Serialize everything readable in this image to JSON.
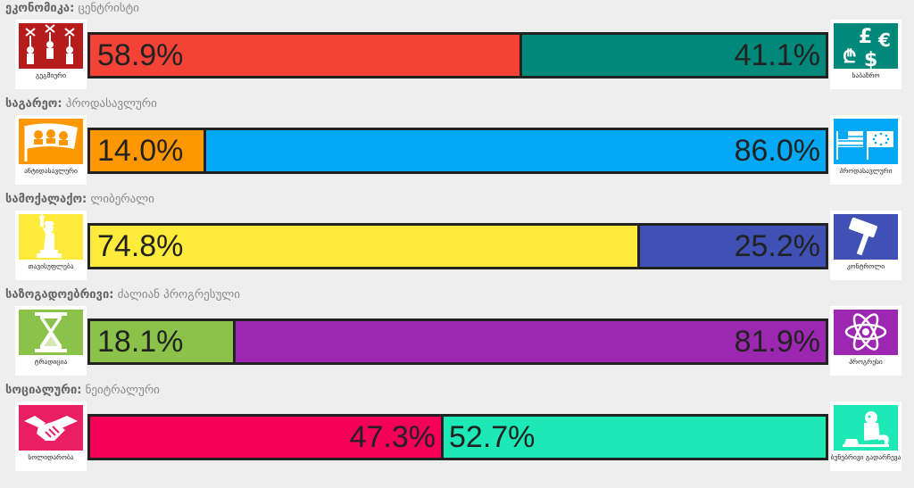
{
  "axes": [
    {
      "category": "ეკონომიკა:",
      "result": "ცენტრისტი",
      "left": {
        "label": "გეგმიური",
        "percent_text": "58.9%",
        "fraction": 0.589,
        "color": "#f44336",
        "tile_color": "#b71c1c",
        "icon": "puppets-icon"
      },
      "right": {
        "label": "საბაზრო",
        "percent_text": "41.1%",
        "color": "#00897b",
        "tile_color": "#00897b",
        "icon": "currency-icon"
      },
      "left_text_align": "left",
      "right_text_align": "right"
    },
    {
      "category": "საგარეო:",
      "result": "პროდასავლური",
      "left": {
        "label": "ანტიდასავლური",
        "percent_text": "14.0%",
        "fraction": 0.14,
        "color": "#ff9800",
        "tile_color": "#ff9800",
        "icon": "protest-flag-icon"
      },
      "right": {
        "label": "პროდასავლური",
        "percent_text": "86.0%",
        "color": "#03a9f4",
        "tile_color": "#03a9f4",
        "icon": "us-eu-flags-icon"
      },
      "left_text_align": "left",
      "right_text_align": "right"
    },
    {
      "category": "სამოქალაქო:",
      "result": "ლიბერალი",
      "left": {
        "label": "თავისუფლება",
        "percent_text": "74.8%",
        "fraction": 0.748,
        "color": "#ffeb3b",
        "tile_color": "#ffeb3b",
        "icon": "statue-of-liberty-icon"
      },
      "right": {
        "label": "კონტროლი",
        "percent_text": "25.2%",
        "color": "#3f51b5",
        "tile_color": "#3f51b5",
        "icon": "gavel-icon"
      },
      "left_text_align": "left",
      "right_text_align": "right"
    },
    {
      "category": "საზოგადოებრივი:",
      "result": "ძალიან პროგრესული",
      "left": {
        "label": "ტრადიცია",
        "percent_text": "18.1%",
        "fraction": 0.181,
        "color": "#8bc34a",
        "tile_color": "#8bc34a",
        "icon": "hourglass-icon"
      },
      "right": {
        "label": "პროგრესი",
        "percent_text": "81.9%",
        "color": "#9c27b0",
        "tile_color": "#9c27b0",
        "icon": "atom-icon"
      },
      "left_text_align": "left",
      "right_text_align": "right"
    },
    {
      "category": "სოციალური:",
      "result": "ნეიტრალური",
      "left": {
        "label": "სოლიდარობა",
        "percent_text": "47.3%",
        "fraction": 0.473,
        "color": "#f50057",
        "tile_color": "#e91e63",
        "icon": "handshake-icon"
      },
      "right": {
        "label": "ბუნებრივი გადარჩევა",
        "percent_text": "52.7%",
        "color": "#1de9b6",
        "tile_color": "#1de9b6",
        "icon": "monkey-icon"
      },
      "left_text_align": "right",
      "right_text_align": "left"
    }
  ]
}
